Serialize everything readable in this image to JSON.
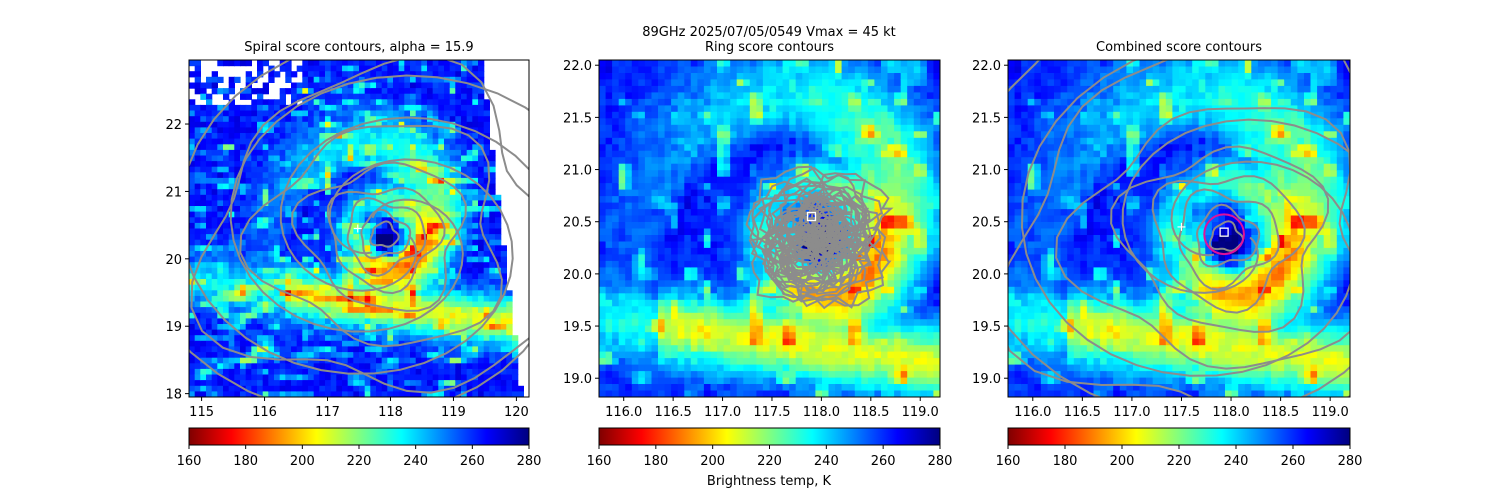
{
  "figure": {
    "suptitle_line1": "89GHz  2025/07/05/0549    Vmax = 45 kt",
    "colorbar_label": "Brightness temp, K",
    "colormap": [
      "#7f0000",
      "#ff0000",
      "#ff8000",
      "#ffff00",
      "#80ff80",
      "#00ffff",
      "#0080ff",
      "#0000ff",
      "#00007f"
    ]
  },
  "chart_data": [
    {
      "type": "heatmap",
      "title": "Spiral score contours, alpha = 15.9",
      "xlim": [
        114.8,
        120.2
      ],
      "ylim": [
        17.95,
        22.95
      ],
      "xticks": [
        115,
        116,
        117,
        118,
        119,
        120
      ],
      "xtick_labels": [
        "115",
        "116",
        "117",
        "118",
        "119",
        "120"
      ],
      "yticks": [
        18,
        19,
        20,
        21,
        22
      ],
      "ytick_labels": [
        "18",
        "19",
        "20",
        "21",
        "22"
      ],
      "storm_center": [
        117.9,
        20.35
      ],
      "plus_marker": [
        117.48,
        20.45
      ],
      "colorbar": {
        "range": [
          160,
          280
        ],
        "ticks": [
          160,
          180,
          200,
          220,
          240,
          260,
          280
        ],
        "tick_labels": [
          "160",
          "180",
          "200",
          "220",
          "240",
          "260",
          "280"
        ]
      }
    },
    {
      "type": "heatmap",
      "title": "Ring score contours",
      "xlim": [
        115.75,
        119.2
      ],
      "ylim": [
        18.82,
        22.05
      ],
      "xticks": [
        116.0,
        116.5,
        117.0,
        117.5,
        118.0,
        118.5,
        119.0
      ],
      "xtick_labels": [
        "116.0",
        "116.5",
        "117.0",
        "117.5",
        "118.0",
        "118.5",
        "119.0"
      ],
      "yticks": [
        19.0,
        19.5,
        20.0,
        20.5,
        21.0,
        21.5,
        22.0
      ],
      "ytick_labels": [
        "19.0",
        "19.5",
        "20.0",
        "20.5",
        "21.0",
        "21.5",
        "22.0"
      ],
      "storm_center": [
        117.95,
        20.35
      ],
      "square_marker": [
        117.9,
        20.55
      ],
      "colorbar": {
        "range": [
          160,
          280
        ],
        "ticks": [
          160,
          180,
          200,
          220,
          240,
          260,
          280
        ],
        "tick_labels": [
          "160",
          "180",
          "200",
          "220",
          "240",
          "260",
          "280"
        ]
      }
    },
    {
      "type": "heatmap",
      "title": "Combined score contours",
      "xlim": [
        115.75,
        119.2
      ],
      "ylim": [
        18.82,
        22.05
      ],
      "xticks": [
        116.0,
        116.5,
        117.0,
        117.5,
        118.0,
        118.5,
        119.0
      ],
      "xtick_labels": [
        "116.0",
        "116.5",
        "117.0",
        "117.5",
        "118.0",
        "118.5",
        "119.0"
      ],
      "yticks": [
        19.0,
        19.5,
        20.0,
        20.5,
        21.0,
        21.5,
        22.0
      ],
      "ytick_labels": [
        "19.0",
        "19.5",
        "20.0",
        "20.5",
        "21.0",
        "21.5",
        "22.0"
      ],
      "storm_center": [
        117.95,
        20.35
      ],
      "plus_marker": [
        117.5,
        20.45
      ],
      "square_marker": [
        117.93,
        20.4
      ],
      "magenta_circle": {
        "center": [
          117.93,
          20.38
        ],
        "radius_deg": 0.2
      },
      "colorbar": {
        "range": [
          160,
          280
        ],
        "ticks": [
          160,
          180,
          200,
          220,
          240,
          260,
          280
        ],
        "tick_labels": [
          "160",
          "180",
          "200",
          "220",
          "240",
          "260",
          "280"
        ]
      }
    }
  ]
}
